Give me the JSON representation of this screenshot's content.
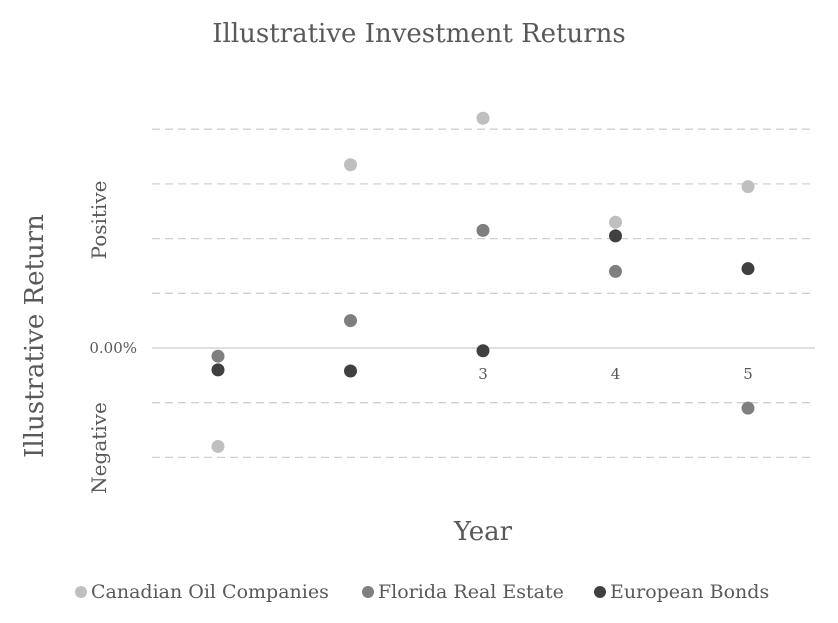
{
  "chart_data": {
    "type": "scatter",
    "title": "Illustrative Investment Returns",
    "xlabel": "Year",
    "ylabel": "Illustrative Return",
    "y_side_labels": {
      "positive": "Positive",
      "negative": "Negative"
    },
    "zero_label": "0.00%",
    "x_tick_labels": [
      "3",
      "4",
      "5"
    ],
    "x_tick_values": [
      3,
      4,
      5
    ],
    "xlim": [
      0.5,
      5.5
    ],
    "ylim": [
      -3,
      4.2
    ],
    "grid": "horizontal dashed",
    "legend_position": "bottom",
    "series": [
      {
        "name": "Canadian Oil Companies",
        "color": "#bfbfbf",
        "points": [
          {
            "x": 1,
            "y": -1.8
          },
          {
            "x": 2,
            "y": 3.35
          },
          {
            "x": 3,
            "y": 4.2
          },
          {
            "x": 4,
            "y": 2.3
          },
          {
            "x": 5,
            "y": 2.95
          }
        ]
      },
      {
        "name": "Florida Real Estate",
        "color": "#7f7f7f",
        "points": [
          {
            "x": 1,
            "y": -0.15
          },
          {
            "x": 2,
            "y": 0.5
          },
          {
            "x": 3,
            "y": 2.15
          },
          {
            "x": 4,
            "y": 1.4
          },
          {
            "x": 5,
            "y": -1.1
          }
        ]
      },
      {
        "name": "European Bonds",
        "color": "#404040",
        "points": [
          {
            "x": 1,
            "y": -0.4
          },
          {
            "x": 2,
            "y": -0.42
          },
          {
            "x": 3,
            "y": -0.05
          },
          {
            "x": 4,
            "y": 2.05
          },
          {
            "x": 5,
            "y": 1.45
          }
        ]
      }
    ]
  }
}
